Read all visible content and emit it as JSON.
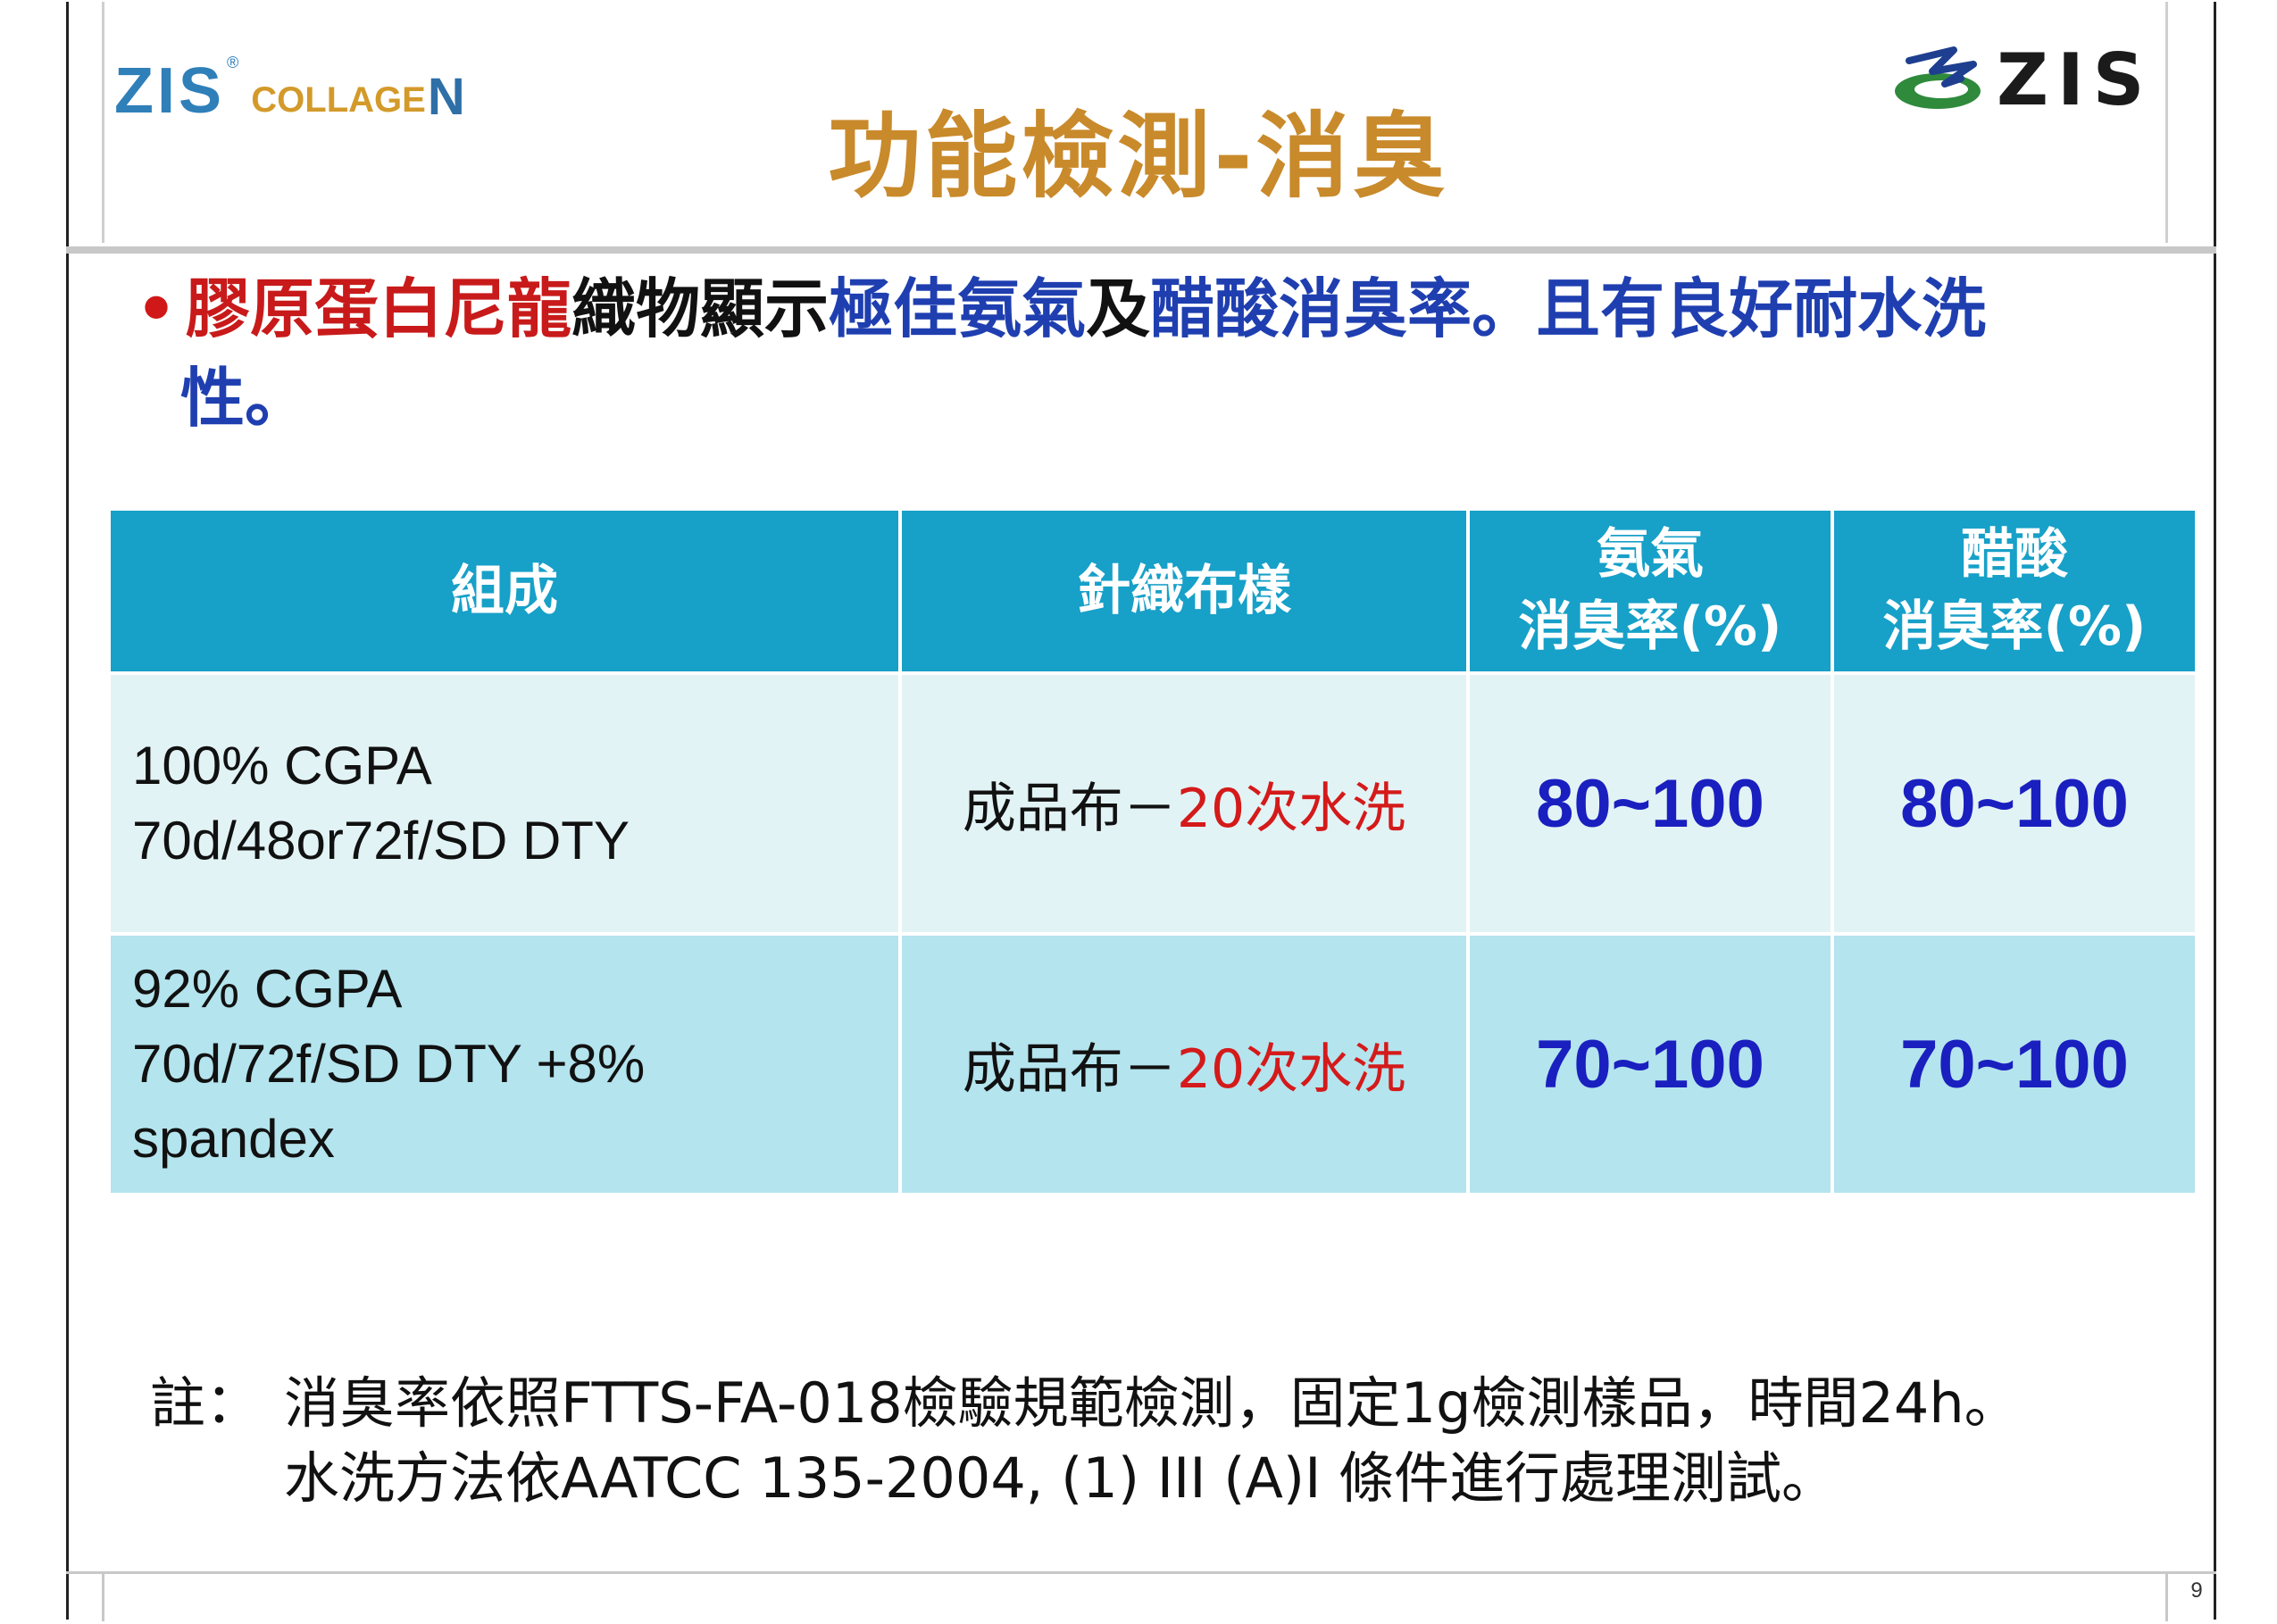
{
  "header": {
    "logo_left": {
      "brand": "ZIS",
      "registered": "®",
      "collagen_text": "COLLAGE",
      "collagen_n": "N"
    },
    "logo_right": {
      "text": "ZIS"
    },
    "title": "功能檢測-消臭"
  },
  "bullet": {
    "marker": "•",
    "segment_1": "膠原蛋白尼龍",
    "segment_2": "織物顯示",
    "segment_3": "極佳氨氣",
    "segment_4": "及",
    "segment_5": "醋酸消臭率",
    "segment_6": "。且有良好耐水洗",
    "segment_7": "性。"
  },
  "table": {
    "headers": {
      "composition": "組成",
      "fabric": "針織布樣",
      "ammonia_line1": "氨氣",
      "ammonia_line2": "消臭率(%)",
      "acetic_line1": "醋酸",
      "acetic_line2": "消臭率(%)"
    },
    "rows": [
      {
        "composition_lines": [
          "100% CGPA",
          "70d/48or72f/SD DTY",
          ""
        ],
        "fabric_prefix": "成品布－",
        "fabric_wash": "20次水洗",
        "ammonia": "80~100",
        "acetic": "80~100"
      },
      {
        "composition_lines": [
          "92% CGPA",
          "70d/72f/SD DTY +8%",
          "spandex"
        ],
        "fabric_prefix": "成品布－",
        "fabric_wash": "20次水洗",
        "ammonia": "70~100",
        "acetic": "70~100"
      }
    ]
  },
  "note": {
    "label": "註：",
    "line1": "消臭率依照FTTS-FA-018檢驗規範檢測，固定1g檢測樣品，時間24h。",
    "line2": "水洗方法依AATCC 135-2004, (1) III (A)I 條件進行處理測試。"
  },
  "footer": {
    "page_number": "9"
  },
  "colors": {
    "title": "#c98a2b",
    "header_fill": "#17a0c8",
    "row1_fill": "#e2f3f5",
    "row2_fill": "#b4e4ee",
    "value_blue": "#1a1fbf",
    "accent_red": "#d41a1a"
  }
}
